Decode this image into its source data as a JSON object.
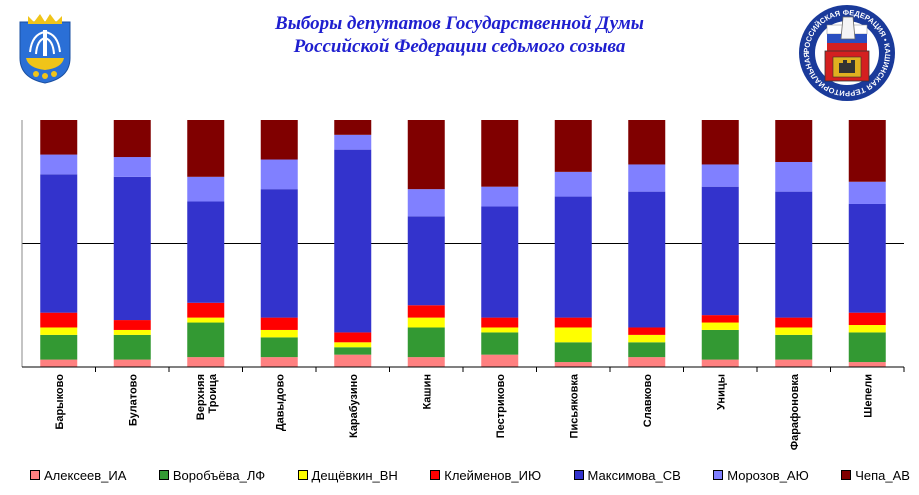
{
  "chart_data": {
    "type": "bar",
    "stacked": true,
    "normalized": true,
    "title": "Выборы депутатов Государственной Думы",
    "subtitle": "Российской Федерации седьмого созыва",
    "ylim": [
      0,
      100
    ],
    "grid": true,
    "legend_position": "bottom",
    "categories": [
      "Барыково",
      "Булатово",
      "Верхняя Троица",
      "Давыдово",
      "Карабузино",
      "Кашин",
      "Пестриково",
      "Письяковка",
      "Славково",
      "Уницы",
      "Фарафоновка",
      "Шепели"
    ],
    "series": [
      {
        "name": "Алексеев_ИА",
        "color": "#ff8080",
        "values": [
          3,
          3,
          4,
          4,
          5,
          4,
          5,
          2,
          4,
          3,
          3,
          2
        ]
      },
      {
        "name": "Воробъёва_ЛФ",
        "color": "#339933",
        "values": [
          10,
          10,
          14,
          8,
          3,
          12,
          9,
          8,
          6,
          12,
          10,
          12
        ]
      },
      {
        "name": "Дещёвкин_ВН",
        "color": "#ffff00",
        "values": [
          3,
          2,
          2,
          3,
          2,
          4,
          2,
          6,
          3,
          3,
          3,
          3
        ]
      },
      {
        "name": "Клейменов_ИЮ",
        "color": "#ff0000",
        "values": [
          6,
          4,
          6,
          5,
          4,
          5,
          4,
          4,
          3,
          3,
          4,
          5
        ]
      },
      {
        "name": "Максимова_СВ",
        "color": "#3333cc",
        "values": [
          56,
          58,
          41,
          52,
          74,
          36,
          45,
          49,
          55,
          52,
          51,
          44
        ]
      },
      {
        "name": "Морозов_АЮ",
        "color": "#8080ff",
        "values": [
          8,
          8,
          10,
          12,
          6,
          11,
          8,
          10,
          11,
          9,
          12,
          9
        ]
      },
      {
        "name": "Чепа_АВ",
        "color": "#800000",
        "values": [
          14,
          15,
          23,
          16,
          6,
          28,
          27,
          21,
          18,
          18,
          17,
          25
        ]
      }
    ]
  },
  "emblems": {
    "left": "coat-of-arms",
    "right_text": "РОССИЙСКАЯ ФЕДЕРАЦИЯ • КАШИНСКАЯ ТЕРРИТОРИАЛЬНАЯ ИЗБИРАТЕЛЬНАЯ КОМИССИЯ •"
  }
}
